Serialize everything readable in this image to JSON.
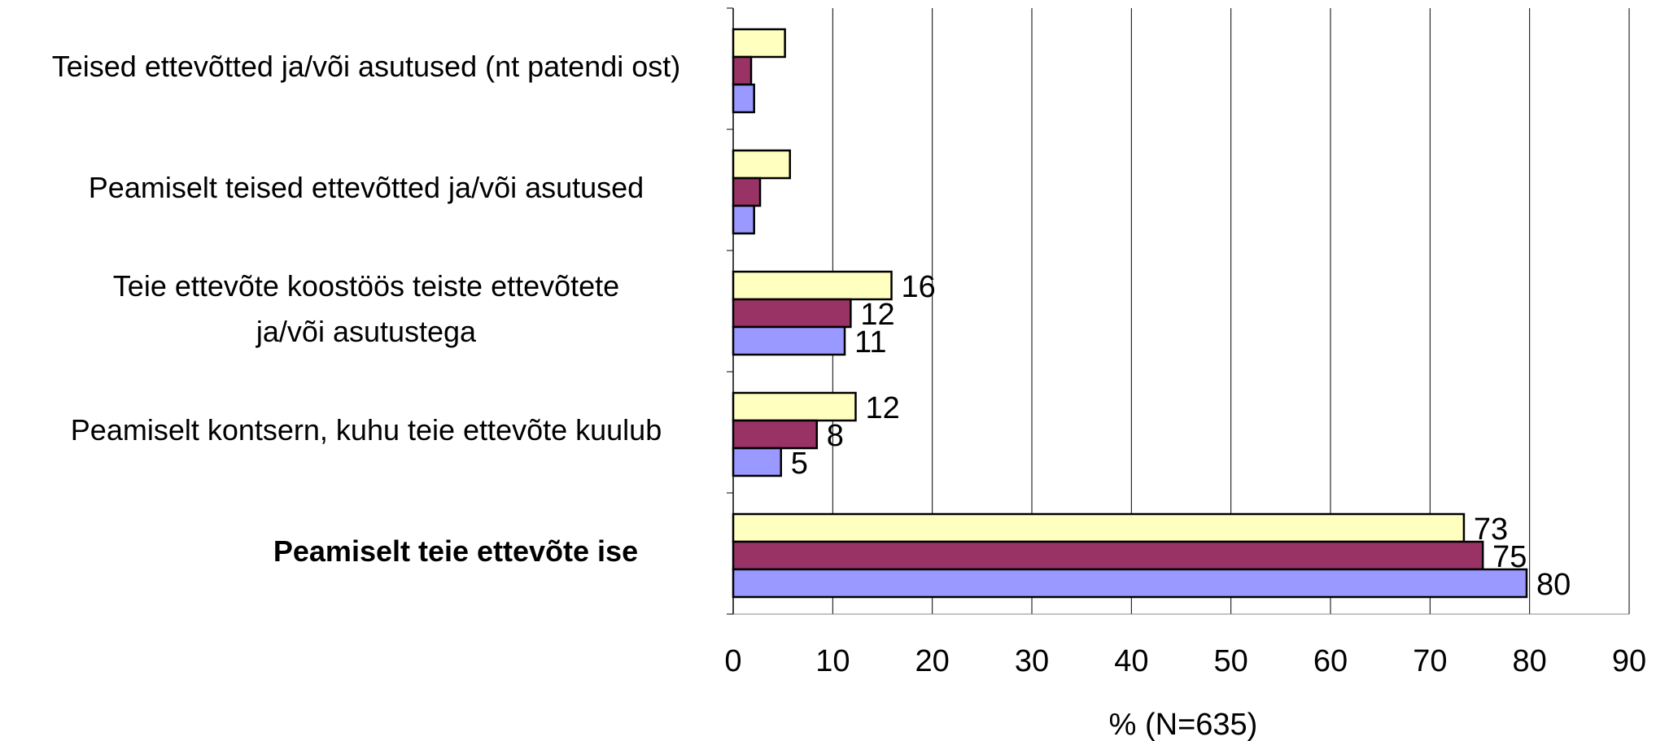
{
  "chart_data": {
    "type": "hbar",
    "categories": [
      "Teised ettevõtted ja/või asutused (nt patendi ost)",
      "Peamiselt teised ettevõtted ja/või asutused",
      [
        "Teie ettevõte koostöös teiste ettevõtete",
        "ja/või asutustega"
      ],
      "Peamiselt kontsern, kuhu teie ettevõte kuulub",
      "Peamiselt teie ettevõte ise"
    ],
    "series": [
      {
        "color": "#ffffc0",
        "values": [
          5.2,
          5.7,
          15.9,
          12.3,
          73.4
        ],
        "value_labels": [
          null,
          null,
          "16",
          "12",
          "73"
        ]
      },
      {
        "color": "#993366",
        "values": [
          1.8,
          2.7,
          11.8,
          8.4,
          75.3
        ],
        "value_labels": [
          null,
          null,
          "12",
          "8",
          "75"
        ]
      },
      {
        "color": "#9999ff",
        "values": [
          2.1,
          2.1,
          11.2,
          4.8,
          79.7
        ],
        "value_labels": [
          null,
          null,
          "11",
          "5",
          "80"
        ]
      }
    ],
    "xlabel": "% (N=635)",
    "xlim": [
      0,
      90
    ],
    "xticks": [
      0,
      10,
      20,
      30,
      40,
      50,
      60,
      70,
      80,
      90
    ],
    "grid": true
  }
}
